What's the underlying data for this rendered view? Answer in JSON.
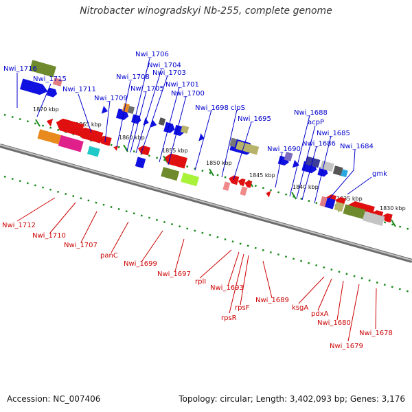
{
  "title": "Nitrobacter winogradskyi Nb-255, complete genome",
  "footer": {
    "accession": "Accession: NC_007406",
    "topology": "Topology: circular; Length: 3,402,093 bp; Genes: 3,176"
  },
  "colors": {
    "forward_arrow": "#1010e0",
    "reverse_arrow": "#e01010",
    "backbone": "#8a8a8a",
    "dots": "#1a8a1a",
    "forward_label": "#0000cc",
    "reverse_label": "#cc0000"
  },
  "kbp_ticks": [
    "1870 kbp",
    "1865 kbp",
    "1860 kbp",
    "1855 kbp",
    "1850 kbp",
    "1845 kbp",
    "1840 kbp",
    "1835 kbp",
    "1830 kbp"
  ],
  "forward_labels": [
    "Nwi_1716",
    "Nwi_1715",
    "Nwi_1711",
    "Nwi_1706",
    "Nwi_1708",
    "Nwi_1704",
    "Nwi_1703",
    "Nwi_1709",
    "Nwi_1705",
    "Nwi_1701",
    "Nwi_1700",
    "Nwi_1698",
    "clpS",
    "Nwi_1695",
    "Nwi_1688",
    "acpP",
    "Nwi_1685",
    "Nwi_1686",
    "Nwi_1690",
    "Nwi_1684",
    "gmk"
  ],
  "reverse_labels": [
    "Nwi_1712",
    "Nwi_1710",
    "Nwi_1707",
    "panC",
    "Nwi_1699",
    "Nwi_1697",
    "rplI",
    "Nwi_1693",
    "rpsR",
    "rpsF",
    "Nwi_1689",
    "ksgA",
    "pdxA",
    "Nwi_1680",
    "Nwi_1679",
    "Nwi_1678"
  ]
}
